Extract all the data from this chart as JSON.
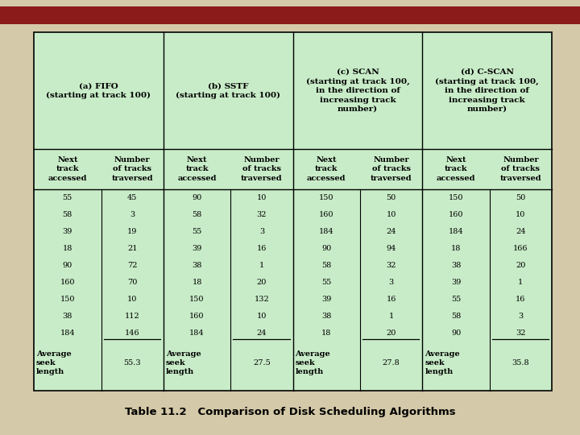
{
  "title": "Table 11.2   Comparison of Disk Scheduling Algorithms",
  "background_color": "#d4c9a8",
  "table_bg": "#c8ecc8",
  "border_color": "#000000",
  "top_bar_color": "#8b1a1a",
  "col_headers": [
    "(a) FIFO\n(starting at track 100)",
    "(b) SSTF\n(starting at track 100)",
    "(c) SCAN\n(starting at track 100,\nin the direction of\nincreasing track\nnumber)",
    "(d) C-SCAN\n(starting at track 100,\nin the direction of\nincreasing track\nnumber)"
  ],
  "data": [
    [
      55,
      45,
      90,
      10,
      150,
      50,
      150,
      50
    ],
    [
      58,
      3,
      58,
      32,
      160,
      10,
      160,
      10
    ],
    [
      39,
      19,
      55,
      3,
      184,
      24,
      184,
      24
    ],
    [
      18,
      21,
      39,
      16,
      90,
      94,
      18,
      166
    ],
    [
      90,
      72,
      38,
      1,
      58,
      32,
      38,
      20
    ],
    [
      160,
      70,
      18,
      20,
      55,
      3,
      39,
      1
    ],
    [
      150,
      10,
      150,
      132,
      39,
      16,
      55,
      16
    ],
    [
      38,
      112,
      160,
      10,
      38,
      1,
      58,
      3
    ],
    [
      184,
      146,
      184,
      24,
      18,
      20,
      90,
      32
    ]
  ],
  "averages": [
    55.3,
    27.5,
    27.8,
    35.8
  ],
  "avg_label": "Average\nseek\nlength",
  "sub_header1": "Next\ntrack\naccessed",
  "sub_header2": "Number\nof tracks\ntraversed"
}
